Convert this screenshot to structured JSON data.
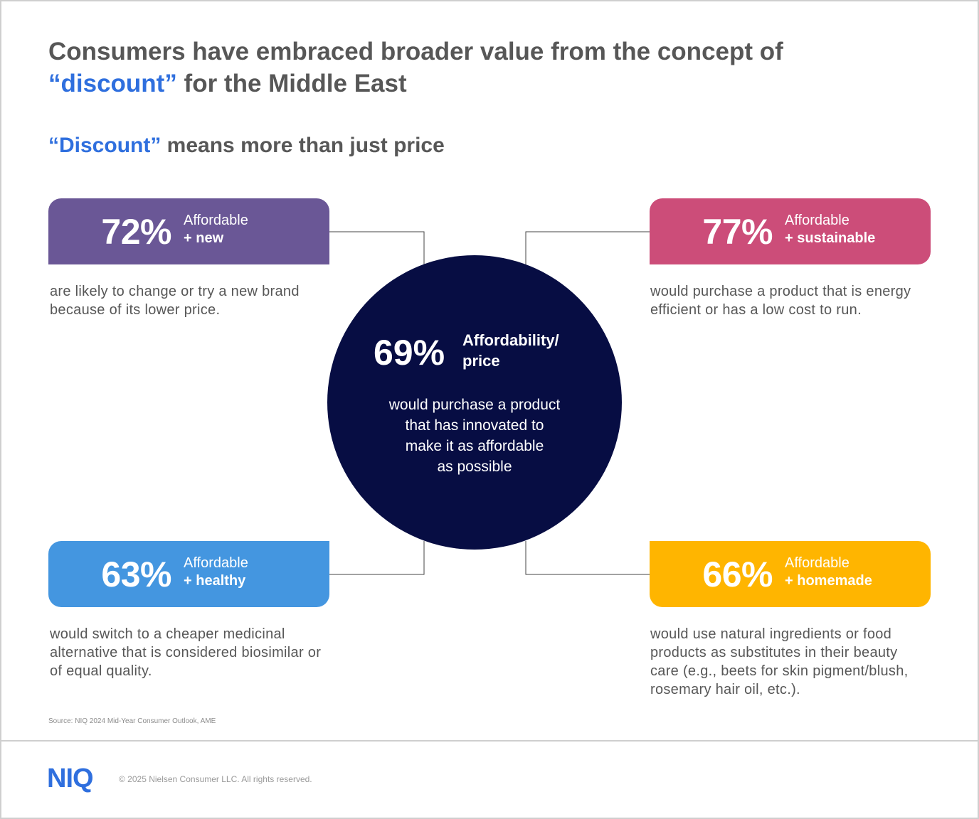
{
  "title": {
    "line1": "Consumers have embraced broader value from the concept of",
    "accent": "“discount”",
    "line2_rest": " for the Middle East"
  },
  "subtitle": {
    "accent": "“Discount”",
    "rest": " means more than just price"
  },
  "center": {
    "percent": "69%",
    "label_line1": "Affordability/",
    "label_line2": "price",
    "desc_lines": [
      "would purchase a product",
      "that has innovated to",
      "make it as affordable",
      "as possible"
    ],
    "color": "#070d43"
  },
  "cards": {
    "top_left": {
      "percent": "72%",
      "label_line1": "Affordable",
      "label_line2": "+ new",
      "description": "are likely to change or try a new brand because of its lower price.",
      "color": "#6a5796"
    },
    "top_right": {
      "percent": "77%",
      "label_line1": "Affordable",
      "label_line2": "+ sustainable",
      "description": "would purchase a product that is energy efficient or has a low cost to run.",
      "color": "#cc4d79"
    },
    "bottom_left": {
      "percent": "63%",
      "label_line1": "Affordable",
      "label_line2": "+ healthy",
      "description": "would switch to a cheaper medicinal alternative that is considered biosimilar or of equal quality.",
      "color": "#4496e0"
    },
    "bottom_right": {
      "percent": "66%",
      "label_line1": "Affordable",
      "label_line2": "+ homemade",
      "description": "would use natural ingredients or food products as substitutes in their beauty care (e.g., beets for skin pigment/blush, rosemary hair oil, etc.).",
      "color": "#ffb500"
    }
  },
  "source": "Source: NIQ 2024 Mid-Year Consumer Outlook, AME",
  "footer": {
    "logo": "NIQ",
    "copyright": "© 2025 Nielsen Consumer LLC. All rights reserved."
  }
}
